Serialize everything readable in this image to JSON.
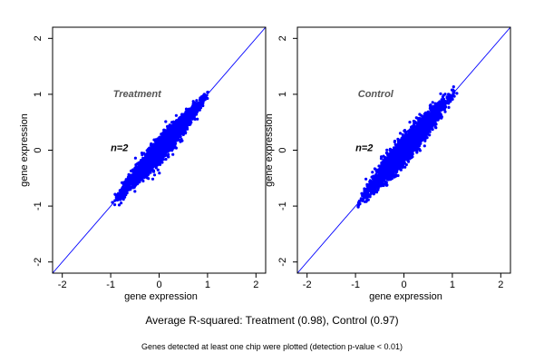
{
  "chart_data": [
    {
      "type": "scatter",
      "title": "Treatment",
      "annotation": "n=2",
      "xlabel": "gene expression",
      "ylabel": "gene expression",
      "xlim": [
        -2.2,
        2.2
      ],
      "ylim": [
        -2.2,
        2.2
      ],
      "xticks": [
        "-2",
        "-1",
        "0",
        "1",
        "2"
      ],
      "yticks": [
        "-2",
        "-1",
        "0",
        "1",
        "2"
      ],
      "grid": false,
      "reference_line": "y = x",
      "point_color": "#0000ff",
      "line_color": "#0000ff",
      "cloud": {
        "x_range": [
          -1.05,
          1.15
        ],
        "slope": 1.0,
        "spread": 0.12,
        "count": 3500
      }
    },
    {
      "type": "scatter",
      "title": "Control",
      "annotation": "n=2",
      "xlabel": "gene expression",
      "ylabel": "gene expression",
      "xlim": [
        -2.2,
        2.2
      ],
      "ylim": [
        -2.2,
        2.2
      ],
      "xticks": [
        "-2",
        "-1",
        "0",
        "1",
        "2"
      ],
      "yticks": [
        "-2",
        "-1",
        "0",
        "1",
        "2"
      ],
      "grid": false,
      "reference_line": "y = x",
      "point_color": "#0000ff",
      "line_color": "#0000ff",
      "cloud": {
        "x_range": [
          -1.05,
          1.15
        ],
        "slope": 1.0,
        "spread": 0.14,
        "count": 3500
      }
    }
  ],
  "captions": {
    "main": "Average R-squared: Treatment (0.98), Control (0.97)",
    "foot": "Genes detected at least one chip were plotted (detection p-value < 0.01)"
  }
}
